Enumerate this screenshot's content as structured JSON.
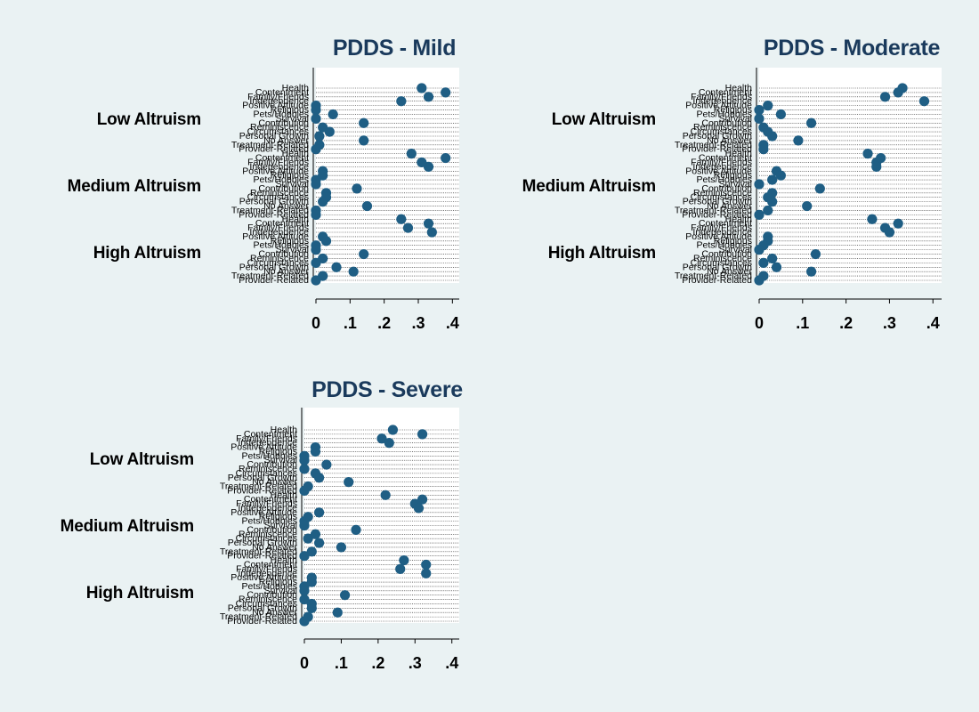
{
  "chart_data": [
    {
      "type": "scatter",
      "title": "PDDS - Mild",
      "xticks": [
        "0",
        ".1",
        ".2",
        ".3",
        ".4"
      ],
      "xlim": [
        0,
        0.42
      ],
      "groups": [
        {
          "label": "Low Altruism",
          "categories": [
            "Health",
            "Contentment",
            "Family/Friends",
            "Independence",
            "Positive Attitude",
            "Religious",
            "Pets/Hobbies",
            "Survival",
            "Contribution",
            "Reminiscence",
            "Circumstances",
            "Personal Growth",
            "No Answer",
            "Treatment-Related",
            "Provider-Related"
          ],
          "values": [
            0.31,
            0.38,
            0.33,
            0.25,
            0.0,
            0.0,
            0.05,
            0.0,
            0.14,
            0.02,
            0.04,
            0.01,
            0.14,
            0.01,
            0.0
          ]
        },
        {
          "label": "Medium Altruism",
          "categories": [
            "Health",
            "Contentment",
            "Family/Friends",
            "Independence",
            "Positive Attitude",
            "Religious",
            "Pets/Hobbies",
            "Survival",
            "Contribution",
            "Reminiscence",
            "Circumstances",
            "Personal Growth",
            "No Answer",
            "Treatment-Related",
            "Provider-Related"
          ],
          "values": [
            0.28,
            0.38,
            0.31,
            0.33,
            0.02,
            0.02,
            0.0,
            0.0,
            0.12,
            0.03,
            0.03,
            0.02,
            0.15,
            0.0,
            0.0
          ]
        },
        {
          "label": "High Altruism",
          "categories": [
            "Health",
            "Contentment",
            "Family/Friends",
            "Independence",
            "Positive Attitude",
            "Religious",
            "Pets/Hobbies",
            "Survival",
            "Contribution",
            "Reminiscence",
            "Circumstances",
            "Personal Growth",
            "No Answer",
            "Treatment-Related",
            "Provider-Related"
          ],
          "values": [
            0.25,
            0.33,
            0.27,
            0.34,
            0.02,
            0.03,
            0.0,
            0.0,
            0.14,
            0.02,
            0.0,
            0.06,
            0.11,
            0.02,
            0.0
          ]
        }
      ]
    },
    {
      "type": "scatter",
      "title": "PDDS - Moderate",
      "xticks": [
        "0",
        ".1",
        ".2",
        ".3",
        ".4"
      ],
      "xlim": [
        0,
        0.42
      ],
      "groups": [
        {
          "label": "Low Altruism",
          "categories": [
            "Health",
            "Contentment",
            "Family/Friends",
            "Independence",
            "Positive Attitude",
            "Religious",
            "Pets/Hobbies",
            "Survival",
            "Contribution",
            "Reminiscence",
            "Circumstances",
            "Personal Growth",
            "No Answer",
            "Treatment-Related",
            "Provider-Related"
          ],
          "values": [
            0.33,
            0.32,
            0.29,
            0.38,
            0.02,
            0.0,
            0.05,
            0.0,
            0.12,
            0.01,
            0.02,
            0.03,
            0.09,
            0.01,
            0.01
          ]
        },
        {
          "label": "Medium Altruism",
          "categories": [
            "Health",
            "Contentment",
            "Family/Friends",
            "Independence",
            "Positive Attitude",
            "Religious",
            "Pets/Hobbies",
            "Survival",
            "Contribution",
            "Reminiscence",
            "Circumstances",
            "Personal Growth",
            "No Answer",
            "Treatment-Related",
            "Provider-Related"
          ],
          "values": [
            0.25,
            0.28,
            0.27,
            0.27,
            0.04,
            0.05,
            0.03,
            0.0,
            0.14,
            0.03,
            0.02,
            0.03,
            0.11,
            0.02,
            0.0
          ]
        },
        {
          "label": "High Altruism",
          "categories": [
            "Health",
            "Contentment",
            "Family/Friends",
            "Independence",
            "Positive Attitude",
            "Religious",
            "Pets/Hobbies",
            "Survival",
            "Contribution",
            "Reminiscence",
            "Circumstances",
            "Personal Growth",
            "No Answer",
            "Treatment-Related",
            "Provider-Related"
          ],
          "values": [
            0.26,
            0.32,
            0.29,
            0.3,
            0.02,
            0.02,
            0.01,
            0.0,
            0.13,
            0.03,
            0.01,
            0.04,
            0.12,
            0.01,
            0.0
          ]
        }
      ]
    },
    {
      "type": "scatter",
      "title": "PDDS - Severe",
      "xticks": [
        "0",
        ".1",
        ".2",
        ".3",
        ".4"
      ],
      "xlim": [
        0,
        0.42
      ],
      "groups": [
        {
          "label": "Low Altruism",
          "categories": [
            "Health",
            "Contentment",
            "Family/Friends",
            "Independence",
            "Positive Attitude",
            "Religious",
            "Pets/Hobbies",
            "Survival",
            "Contribution",
            "Reminiscence",
            "Circumstances",
            "Personal Growth",
            "No Answer",
            "Treatment-Related",
            "Provider-Related"
          ],
          "values": [
            0.24,
            0.32,
            0.21,
            0.23,
            0.03,
            0.03,
            0.0,
            0.0,
            0.06,
            0.0,
            0.03,
            0.04,
            0.12,
            0.01,
            0.0
          ]
        },
        {
          "label": "Medium Altruism",
          "categories": [
            "Health",
            "Contentment",
            "Family/Friends",
            "Independence",
            "Positive Attitude",
            "Religious",
            "Pets/Hobbies",
            "Survival",
            "Contribution",
            "Reminiscence",
            "Circumstances",
            "Personal Growth",
            "No Answer",
            "Treatment-Related",
            "Provider-Related"
          ],
          "values": [
            0.22,
            0.32,
            0.3,
            0.31,
            0.04,
            0.01,
            0.0,
            0.0,
            0.14,
            0.03,
            0.01,
            0.04,
            0.1,
            0.02,
            0.0
          ]
        },
        {
          "label": "High Altruism",
          "categories": [
            "Health",
            "Contentment",
            "Family/Friends",
            "Independence",
            "Positive Attitude",
            "Religious",
            "Pets/Hobbies",
            "Survival",
            "Contribution",
            "Reminiscence",
            "Circumstances",
            "Personal Growth",
            "No Answer",
            "Treatment-Related",
            "Provider-Related"
          ],
          "values": [
            0.27,
            0.33,
            0.26,
            0.33,
            0.02,
            0.02,
            0.0,
            0.0,
            0.11,
            0.0,
            0.02,
            0.02,
            0.09,
            0.01,
            0.0
          ]
        }
      ]
    }
  ],
  "colors": {
    "background": "#eaf2f3",
    "plot_region": "#ffffff",
    "marker": "#1f5e84",
    "title": "#1a3a5c"
  }
}
